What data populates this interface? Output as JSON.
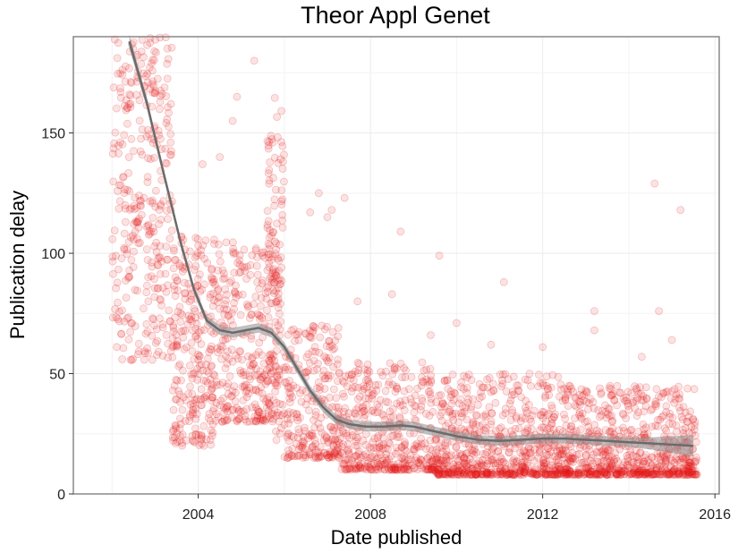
{
  "chart_data": {
    "type": "scatter",
    "title": "Theor Appl Genet",
    "xlabel": "Date published",
    "ylabel": "Publication delay",
    "x_unit": "year",
    "xlim": [
      2001.1,
      2016.1
    ],
    "ylim": [
      0,
      190
    ],
    "x_ticks": [
      2004,
      2008,
      2012,
      2016
    ],
    "y_ticks": [
      0,
      50,
      100,
      150
    ],
    "x_tick_labels": [
      "2004",
      "2008",
      "2012",
      "2016"
    ],
    "y_tick_labels": [
      "0",
      "50",
      "100",
      "150"
    ],
    "grid": true,
    "legend": "none",
    "colors": {
      "points": "#e31a1c",
      "smooth_line": "#6b6b6b",
      "confidence_band": "#8c8c8c",
      "panel_border": "#7f7f7f",
      "grid": "#ebebeb"
    },
    "smooth": {
      "x": [
        2002.4,
        2002.8,
        2003.2,
        2003.6,
        2003.9,
        2004.2,
        2004.5,
        2004.8,
        2005.1,
        2005.4,
        2005.7,
        2006.0,
        2006.3,
        2006.6,
        2006.9,
        2007.2,
        2007.5,
        2007.9,
        2008.3,
        2008.7,
        2009.0,
        2009.5,
        2010.0,
        2010.5,
        2011.0,
        2011.5,
        2012.0,
        2012.5,
        2013.0,
        2013.5,
        2014.0,
        2014.5,
        2015.0,
        2015.5
      ],
      "y": [
        188,
        163,
        133,
        104,
        85,
        72,
        68,
        67,
        68,
        69,
        67,
        61,
        52,
        43,
        36,
        31,
        29,
        28,
        28,
        28.5,
        28,
        26,
        24,
        22.5,
        22,
        22.5,
        23,
        23,
        22.5,
        22,
        21.5,
        21,
        20.5,
        20
      ],
      "band_halfwidth": [
        3,
        2.2,
        1.8,
        1.6,
        1.6,
        1.8,
        2,
        2,
        2,
        2,
        2,
        2,
        2,
        2,
        2,
        2,
        2,
        2,
        2,
        2,
        2,
        2,
        2,
        2,
        2,
        2,
        2,
        2,
        2,
        2,
        2,
        2.5,
        3.5,
        4.5
      ]
    },
    "point_clusters": [
      {
        "x": [
          2002.0,
          2003.4
        ],
        "ymin": 55,
        "ymax": 190,
        "n": 330,
        "skew": 1.0
      },
      {
        "x": [
          2003.4,
          2004.4
        ],
        "ymin": 20,
        "ymax": 110,
        "n": 260,
        "skew": 1.2
      },
      {
        "x": [
          2004.4,
          2005.9
        ],
        "ymin": 30,
        "ymax": 105,
        "n": 320,
        "skew": 1.3
      },
      {
        "x": [
          2005.6,
          2006.0
        ],
        "ymin": 20,
        "ymax": 165,
        "n": 110,
        "skew": 1.0
      },
      {
        "x": [
          2006.0,
          2007.3
        ],
        "ymin": 15,
        "ymax": 70,
        "n": 260,
        "skew": 1.8
      },
      {
        "x": [
          2007.3,
          2009.5
        ],
        "ymin": 10,
        "ymax": 55,
        "n": 420,
        "skew": 2.2
      },
      {
        "x": [
          2009.5,
          2012.5
        ],
        "ymin": 8,
        "ymax": 50,
        "n": 700,
        "skew": 2.5
      },
      {
        "x": [
          2012.5,
          2015.6
        ],
        "ymin": 8,
        "ymax": 45,
        "n": 720,
        "skew": 2.5
      }
    ],
    "scattered_outliers": [
      {
        "x": 2005.3,
        "y": 180
      },
      {
        "x": 2004.9,
        "y": 165
      },
      {
        "x": 2004.8,
        "y": 155
      },
      {
        "x": 2004.5,
        "y": 140
      },
      {
        "x": 2004.1,
        "y": 137
      },
      {
        "x": 2006.8,
        "y": 125
      },
      {
        "x": 2007.1,
        "y": 118
      },
      {
        "x": 2007.4,
        "y": 123
      },
      {
        "x": 2006.6,
        "y": 117
      },
      {
        "x": 2007.0,
        "y": 115
      },
      {
        "x": 2008.7,
        "y": 109
      },
      {
        "x": 2009.6,
        "y": 99
      },
      {
        "x": 2011.1,
        "y": 88
      },
      {
        "x": 2008.5,
        "y": 83
      },
      {
        "x": 2007.7,
        "y": 80
      },
      {
        "x": 2013.2,
        "y": 76
      },
      {
        "x": 2014.7,
        "y": 76
      },
      {
        "x": 2010.0,
        "y": 71
      },
      {
        "x": 2013.2,
        "y": 68
      },
      {
        "x": 2014.6,
        "y": 129
      },
      {
        "x": 2015.2,
        "y": 118
      },
      {
        "x": 2012.0,
        "y": 61
      },
      {
        "x": 2009.4,
        "y": 66
      },
      {
        "x": 2015.0,
        "y": 64
      },
      {
        "x": 2014.3,
        "y": 57
      },
      {
        "x": 2010.8,
        "y": 62
      }
    ]
  }
}
